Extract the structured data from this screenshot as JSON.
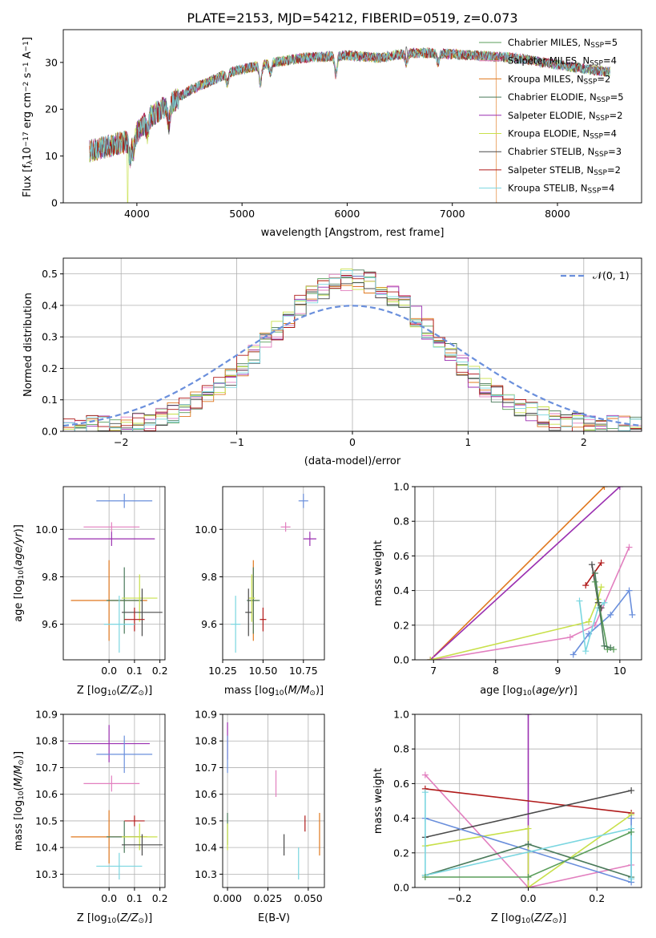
{
  "title": "PLATE=2153, MJD=54212, FIBERID=0519, z=0.073",
  "series": [
    {
      "key": "chabrier_miles",
      "label": "Chabrier MILES, N",
      "n": "5",
      "color": "#5a9e5a"
    },
    {
      "key": "salpeter_miles",
      "label": "Salpeter MILES, N",
      "n": "4",
      "color": "#e27fbf"
    },
    {
      "key": "kroupa_miles",
      "label": "Kroupa MILES, N",
      "n": "2",
      "color": "#e0781e"
    },
    {
      "key": "chabrier_elodie",
      "label": "Chabrier ELODIE, N",
      "n": "5",
      "color": "#4a7a5a"
    },
    {
      "key": "salpeter_elodie",
      "label": "Salpeter ELODIE, N",
      "n": "2",
      "color": "#9a2fb0"
    },
    {
      "key": "kroupa_elodie",
      "label": "Kroupa ELODIE, N",
      "n": "4",
      "color": "#c8e04a"
    },
    {
      "key": "chabrier_stelib",
      "label": "Chabrier STELIB, N",
      "n": "3",
      "color": "#4a4a4a"
    },
    {
      "key": "salpeter_stelib",
      "label": "Salpeter STELIB, N",
      "n": "2",
      "color": "#b01a1a"
    },
    {
      "key": "kroupa_stelib",
      "label": "Kroupa STELIB, N",
      "n": "4",
      "color": "#7ad6e0"
    }
  ],
  "chart_data": [
    {
      "id": "spectrum",
      "type": "line",
      "xlabel": "wavelength [Angstrom, rest frame]",
      "ylabel": "Flux [f",
      "ylabel_sub": "λ",
      "ylabel_rest": "10",
      "ylabel_exp": "−17",
      "ylabel_tail": " erg cm",
      "ylabel_exp2": "−2",
      "ylabel_tail2": " s",
      "ylabel_exp3": "−1",
      "ylabel_tail3": " A",
      "ylabel_exp4": "−1",
      "ylabel_end": "]",
      "xlim": [
        3300,
        8800
      ],
      "ylim": [
        0,
        37
      ],
      "xticks": [
        4000,
        5000,
        6000,
        7000,
        8000
      ],
      "yticks": [
        0,
        10,
        20,
        30
      ],
      "continuum": [
        [
          3550,
          11
        ],
        [
          3700,
          12
        ],
        [
          3900,
          13
        ],
        [
          4000,
          15
        ],
        [
          4100,
          18
        ],
        [
          4300,
          21
        ],
        [
          4500,
          24
        ],
        [
          4700,
          26
        ],
        [
          4900,
          28
        ],
        [
          5100,
          29
        ],
        [
          5300,
          30
        ],
        [
          5600,
          31
        ],
        [
          6000,
          31.5
        ],
        [
          6300,
          31
        ],
        [
          6600,
          32
        ],
        [
          6800,
          32
        ],
        [
          7200,
          31.5
        ],
        [
          7600,
          31
        ],
        [
          8000,
          29.5
        ],
        [
          8300,
          28.5
        ],
        [
          8500,
          28
        ]
      ],
      "dips": [
        [
          3934,
          -4
        ],
        [
          3968,
          -3
        ],
        [
          4101,
          -3
        ],
        [
          4304,
          -4
        ],
        [
          4861,
          -2
        ],
        [
          5175,
          -4
        ],
        [
          5270,
          -2
        ],
        [
          5893,
          -4
        ],
        [
          6563,
          -2
        ],
        [
          6865,
          -2
        ]
      ],
      "spikes": [
        [
          6563,
          3
        ]
      ],
      "drops": [
        [
          "kroupa_elodie",
          3910
        ],
        [
          "kroupa_elodie",
          6800
        ],
        [
          "kroupa_miles",
          7420
        ]
      ],
      "legend_sub": "SSP"
    },
    {
      "id": "residuals",
      "type": "step",
      "xlabel": "(data-model)/error",
      "ylabel": "Normed distribution",
      "xlim": [
        -2.5,
        2.5
      ],
      "ylim": [
        0,
        0.55
      ],
      "xticks": [
        -2,
        -1,
        0,
        1,
        2
      ],
      "yticks": [
        0.0,
        0.1,
        0.2,
        0.3,
        0.4,
        0.5
      ],
      "gaussian_label": "𝒩(0, 1)",
      "gaussian_color": "#6a8fdc",
      "bin_width": 0.1
    },
    {
      "id": "age_vs_Z",
      "type": "errorbar",
      "xlabel": "Z [log",
      "xlabel_sub": "10",
      "xlabel_rest": "(Z/Z",
      "xlabel_sub2": "⊙",
      "xlabel_end": ")]",
      "ylabel": "age  [log",
      "ylabel_sub": "10",
      "ylabel_rest": "(age/yr)]",
      "xlim": [
        -0.18,
        0.22
      ],
      "ylim": [
        9.45,
        10.18
      ],
      "xticks": [
        0.0,
        0.1,
        0.2
      ],
      "yticks": [
        9.6,
        9.8,
        10.0
      ],
      "points": [
        {
          "s": "blue",
          "x": 0.06,
          "y": 10.12,
          "xe": 0.11,
          "ye": 0.03
        },
        {
          "s": "salpeter_miles",
          "x": 0.01,
          "y": 10.01,
          "xe": 0.11,
          "ye": 0.02
        },
        {
          "s": "salpeter_elodie",
          "x": 0.01,
          "y": 9.96,
          "xe": 0.17,
          "ye": 0.03
        },
        {
          "s": "kroupa_miles",
          "x": 0.0,
          "y": 9.7,
          "xe": 0.15,
          "ye": 0.17
        },
        {
          "s": "chabrier_elodie",
          "x": 0.06,
          "y": 9.7,
          "xe": 0.07,
          "ye": 0.14
        },
        {
          "s": "kroupa_elodie",
          "x": 0.12,
          "y": 9.71,
          "xe": 0.07,
          "ye": 0.1
        },
        {
          "s": "chabrier_stelib",
          "x": 0.13,
          "y": 9.65,
          "xe": 0.08,
          "ye": 0.1
        },
        {
          "s": "salpeter_stelib",
          "x": 0.1,
          "y": 9.62,
          "xe": 0.04,
          "ye": 0.05
        },
        {
          "s": "kroupa_stelib",
          "x": 0.04,
          "y": 9.6,
          "xe": 0.06,
          "ye": 0.12
        }
      ]
    },
    {
      "id": "age_vs_mass",
      "type": "errorbar",
      "xlabel": "mass [log",
      "xlabel_sub": "10",
      "xlabel_rest": "(M/M",
      "xlabel_sub2": "⊙",
      "xlabel_end": ")]",
      "xlim": [
        10.25,
        10.88
      ],
      "ylim": [
        9.45,
        10.18
      ],
      "xticks": [
        10.25,
        10.5,
        10.75
      ],
      "xticklabels": [
        "10.25",
        "10.50",
        "10.75"
      ],
      "yticks": [
        9.6,
        9.8,
        10.0
      ],
      "points": [
        {
          "s": "blue",
          "x": 10.75,
          "y": 10.12,
          "xe": 0.03,
          "ye": 0.03
        },
        {
          "s": "salpeter_miles",
          "x": 10.64,
          "y": 10.01,
          "xe": 0.03,
          "ye": 0.02
        },
        {
          "s": "salpeter_elodie",
          "x": 10.79,
          "y": 9.96,
          "xe": 0.04,
          "ye": 0.03
        },
        {
          "s": "kroupa_miles",
          "x": 10.44,
          "y": 9.7,
          "xe": 0.03,
          "ye": 0.17
        },
        {
          "s": "chabrier_elodie",
          "x": 10.44,
          "y": 9.7,
          "xe": 0.04,
          "ye": 0.14
        },
        {
          "s": "kroupa_elodie",
          "x": 10.43,
          "y": 9.71,
          "xe": 0.02,
          "ye": 0.1
        },
        {
          "s": "chabrier_stelib",
          "x": 10.41,
          "y": 9.65,
          "xe": 0.02,
          "ye": 0.1
        },
        {
          "s": "salpeter_stelib",
          "x": 10.5,
          "y": 9.62,
          "xe": 0.02,
          "ye": 0.05
        },
        {
          "s": "kroupa_stelib",
          "x": 10.33,
          "y": 9.6,
          "xe": 0.03,
          "ye": 0.12
        }
      ]
    },
    {
      "id": "massweight_vs_age",
      "type": "line",
      "xlabel": "age  [log",
      "xlabel_sub": "10",
      "xlabel_rest": "(age/yr)]",
      "ylabel": "mass weight",
      "xlim": [
        6.7,
        10.35
      ],
      "ylim": [
        0,
        1
      ],
      "xticks": [
        7,
        8,
        9,
        10
      ],
      "yticks": [
        0.0,
        0.2,
        0.4,
        0.6,
        0.8,
        1.0
      ],
      "lines": [
        {
          "s": "kroupa_miles",
          "pts": [
            [
              6.95,
              0.0
            ],
            [
              9.75,
              1.0
            ]
          ]
        },
        {
          "s": "salpeter_elodie",
          "pts": [
            [
              6.95,
              0.0
            ],
            [
              10.0,
              1.0
            ]
          ]
        },
        {
          "s": "salpeter_miles",
          "pts": [
            [
              7.0,
              0.0
            ],
            [
              9.2,
              0.13
            ],
            [
              9.6,
              0.2
            ],
            [
              10.15,
              0.65
            ]
          ]
        },
        {
          "s": "kroupa_elodie",
          "pts": [
            [
              6.95,
              0.0
            ],
            [
              9.5,
              0.22
            ],
            [
              9.65,
              0.35
            ],
            [
              9.7,
              0.42
            ]
          ]
        },
        {
          "s": "blue",
          "pts": [
            [
              9.25,
              0.03
            ],
            [
              9.5,
              0.15
            ],
            [
              9.85,
              0.26
            ],
            [
              10.15,
              0.4
            ],
            [
              10.2,
              0.26
            ]
          ]
        },
        {
          "s": "kroupa_stelib",
          "pts": [
            [
              9.35,
              0.34
            ],
            [
              9.45,
              0.05
            ],
            [
              9.65,
              0.3
            ],
            [
              9.75,
              0.33
            ]
          ]
        },
        {
          "s": "chabrier_stelib",
          "pts": [
            [
              9.55,
              0.55
            ],
            [
              9.65,
              0.33
            ],
            [
              9.7,
              0.3
            ]
          ]
        },
        {
          "s": "salpeter_stelib",
          "pts": [
            [
              9.45,
              0.43
            ],
            [
              9.7,
              0.56
            ]
          ]
        },
        {
          "s": "chabrier_miles",
          "pts": [
            [
              9.6,
              0.45
            ],
            [
              9.8,
              0.06
            ],
            [
              9.9,
              0.06
            ]
          ]
        },
        {
          "s": "chabrier_elodie",
          "pts": [
            [
              9.6,
              0.5
            ],
            [
              9.75,
              0.08
            ],
            [
              9.85,
              0.07
            ]
          ]
        }
      ]
    },
    {
      "id": "mass_vs_Z",
      "type": "errorbar",
      "xlabel": "Z [log",
      "xlabel_sub": "10",
      "xlabel_rest": "(Z/Z",
      "xlabel_sub2": "⊙",
      "xlabel_end": ")]",
      "ylabel": "mass [log",
      "ylabel_sub": "10",
      "ylabel_rest": "(M/M",
      "ylabel_sub2": "⊙",
      "ylabel_end": ")]",
      "xlim": [
        -0.18,
        0.22
      ],
      "ylim": [
        10.25,
        10.9
      ],
      "xticks": [
        0.0,
        0.1,
        0.2
      ],
      "yticks": [
        10.3,
        10.4,
        10.5,
        10.6,
        10.7,
        10.8,
        10.9
      ],
      "points": [
        {
          "s": "salpeter_elodie",
          "x": 0.0,
          "y": 10.79,
          "xe": 0.16,
          "ye": 0.07
        },
        {
          "s": "blue",
          "x": 0.06,
          "y": 10.75,
          "xe": 0.11,
          "ye": 0.07
        },
        {
          "s": "salpeter_miles",
          "x": 0.01,
          "y": 10.64,
          "xe": 0.11,
          "ye": 0.03
        },
        {
          "s": "kroupa_miles",
          "x": 0.0,
          "y": 10.44,
          "xe": 0.15,
          "ye": 0.1
        },
        {
          "s": "salpeter_stelib",
          "x": 0.1,
          "y": 10.5,
          "xe": 0.04,
          "ye": 0.02
        },
        {
          "s": "chabrier_elodie",
          "x": 0.06,
          "y": 10.44,
          "xe": 0.07,
          "ye": 0.06
        },
        {
          "s": "kroupa_elodie",
          "x": 0.12,
          "y": 10.44,
          "xe": 0.07,
          "ye": 0.05
        },
        {
          "s": "chabrier_stelib",
          "x": 0.13,
          "y": 10.41,
          "xe": 0.08,
          "ye": 0.04
        },
        {
          "s": "kroupa_stelib",
          "x": 0.04,
          "y": 10.33,
          "xe": 0.09,
          "ye": 0.05
        }
      ]
    },
    {
      "id": "mass_vs_ebv",
      "type": "errorbar",
      "xlabel": "E(B-V)",
      "xlim": [
        -0.003,
        0.06
      ],
      "ylim": [
        10.25,
        10.9
      ],
      "xticks": [
        0.0,
        0.025,
        0.05
      ],
      "xticklabels": [
        "0.000",
        "0.025",
        "0.050"
      ],
      "yticks": [
        10.3,
        10.4,
        10.5,
        10.6,
        10.7,
        10.8,
        10.9
      ],
      "points": [
        {
          "s": "salpeter_elodie",
          "x": 0.0,
          "y": 10.8,
          "xe": 0,
          "ye": 0.07
        },
        {
          "s": "blue",
          "x": 0.0,
          "y": 10.75,
          "xe": 0,
          "ye": 0.07
        },
        {
          "s": "salpeter_miles",
          "x": 0.03,
          "y": 10.64,
          "xe": 0,
          "ye": 0.05
        },
        {
          "s": "kroupa_miles",
          "x": 0.057,
          "y": 10.45,
          "xe": 0,
          "ye": 0.08
        },
        {
          "s": "salpeter_stelib",
          "x": 0.048,
          "y": 10.49,
          "xe": 0,
          "ye": 0.03
        },
        {
          "s": "chabrier_elodie",
          "x": 0.0,
          "y": 10.47,
          "xe": 0,
          "ye": 0.06
        },
        {
          "s": "kroupa_elodie",
          "x": 0.0,
          "y": 10.44,
          "xe": 0,
          "ye": 0.05
        },
        {
          "s": "chabrier_stelib",
          "x": 0.035,
          "y": 10.41,
          "xe": 0,
          "ye": 0.04
        },
        {
          "s": "kroupa_stelib",
          "x": 0.044,
          "y": 10.34,
          "xe": 0,
          "ye": 0.06
        }
      ]
    },
    {
      "id": "massweight_vs_Z",
      "type": "line",
      "xlabel": "Z [log",
      "xlabel_sub": "10",
      "xlabel_rest": "(Z/Z",
      "xlabel_sub2": "⊙",
      "xlabel_end": ")]",
      "ylabel": "mass weight",
      "xlim": [
        -0.33,
        0.33
      ],
      "ylim": [
        0,
        1
      ],
      "xticks": [
        -0.2,
        0.0,
        0.2
      ],
      "yticks": [
        0.0,
        0.2,
        0.4,
        0.6,
        0.8,
        1.0
      ],
      "lines": [
        {
          "s": "salpeter_elodie",
          "pts": [
            [
              0.0,
              0.0
            ],
            [
              0.0,
              1.0
            ]
          ]
        },
        {
          "s": "salpeter_miles",
          "pts": [
            [
              -0.3,
              0.65
            ],
            [
              0.0,
              0.0
            ],
            [
              0.3,
              0.13
            ]
          ]
        },
        {
          "s": "salpeter_stelib",
          "pts": [
            [
              -0.3,
              0.57
            ],
            [
              0.3,
              0.43
            ]
          ]
        },
        {
          "s": "chabrier_stelib",
          "pts": [
            [
              -0.3,
              0.29
            ],
            [
              0.3,
              0.56
            ]
          ]
        },
        {
          "s": "kroupa_elodie",
          "pts": [
            [
              -0.3,
              0.24
            ],
            [
              0.0,
              0.34
            ],
            [
              0.0,
              0.0
            ],
            [
              0.3,
              0.42
            ]
          ]
        },
        {
          "s": "blue",
          "pts": [
            [
              -0.3,
              0.4
            ],
            [
              0.3,
              0.03
            ],
            [
              0.3,
              0.4
            ]
          ]
        },
        {
          "s": "chabrier_elodie",
          "pts": [
            [
              -0.3,
              0.07
            ],
            [
              0.0,
              0.25
            ],
            [
              0.3,
              0.06
            ]
          ]
        },
        {
          "s": "kroupa_stelib",
          "pts": [
            [
              -0.3,
              0.55
            ],
            [
              -0.3,
              0.07
            ],
            [
              0.3,
              0.34
            ],
            [
              0.3,
              0.05
            ]
          ]
        },
        {
          "s": "chabrier_miles",
          "pts": [
            [
              -0.3,
              0.06
            ],
            [
              0.0,
              0.06
            ],
            [
              0.3,
              0.32
            ]
          ]
        }
      ]
    }
  ]
}
